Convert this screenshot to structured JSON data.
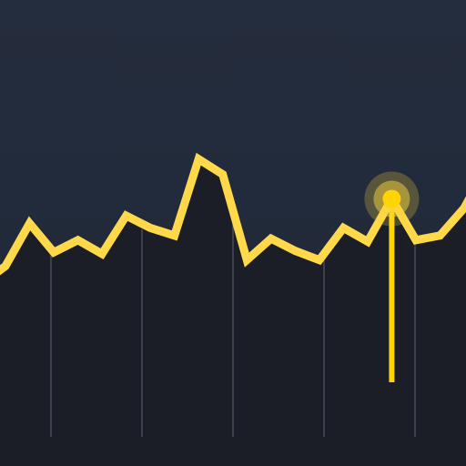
{
  "icon": {
    "background_color": "#222a38",
    "area_fill_color": "#1b1e26",
    "line_color": "#ffd94a",
    "gridline_color": "#6b717c",
    "cursor_color": "#ffd400",
    "glow_color": "#f7d43b"
  },
  "chart_data": {
    "type": "line",
    "x": [
      0,
      1,
      2,
      3,
      4,
      5,
      6,
      7,
      8,
      9,
      10,
      11,
      12,
      13,
      14,
      15,
      16,
      17,
      18,
      19
    ],
    "values": [
      0.2,
      0.48,
      0.29,
      0.37,
      0.28,
      0.53,
      0.45,
      0.4,
      0.9,
      0.8,
      0.24,
      0.38,
      0.3,
      0.24,
      0.45,
      0.36,
      0.64,
      0.37,
      0.4,
      0.58
    ],
    "highlight_index": 16,
    "xlim": [
      0,
      19
    ],
    "ylim": [
      0,
      1
    ],
    "grid": true,
    "vertical_gridlines": 5
  }
}
